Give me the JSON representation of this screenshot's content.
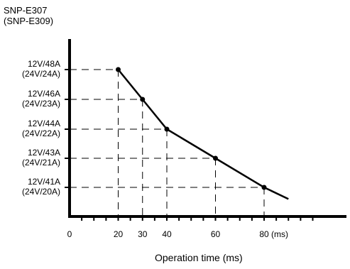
{
  "chart_data": {
    "type": "line",
    "title_lines": [
      "SNP-E307",
      "(SNP-E309)"
    ],
    "xlabel": "Operation time (ms)",
    "x_unit_label": "(ms)",
    "x_ticks": [
      0,
      20,
      30,
      40,
      60,
      80
    ],
    "y_tick_labels": [
      {
        "line1": "12V/48A",
        "line2": "(24V/24A)"
      },
      {
        "line1": "12V/46A",
        "line2": "(24V/23A)"
      },
      {
        "line1": "12V/44A",
        "line2": "(24V/22A)"
      },
      {
        "line1": "12V/43A",
        "line2": "(24V/21A)"
      },
      {
        "line1": "12V/41A",
        "line2": "(24V/20A)"
      }
    ],
    "series": [
      {
        "points": [
          {
            "x": 20,
            "y": 48
          },
          {
            "x": 30,
            "y": 46
          },
          {
            "x": 40,
            "y": 44
          },
          {
            "x": 60,
            "y": 43
          },
          {
            "x": 80,
            "y": 41
          }
        ],
        "extension_end": {
          "x": 90,
          "y": 40.2
        }
      }
    ],
    "xlim": [
      0,
      105
    ],
    "grid": "dashed guide lines to marked points",
    "legend": "none"
  }
}
